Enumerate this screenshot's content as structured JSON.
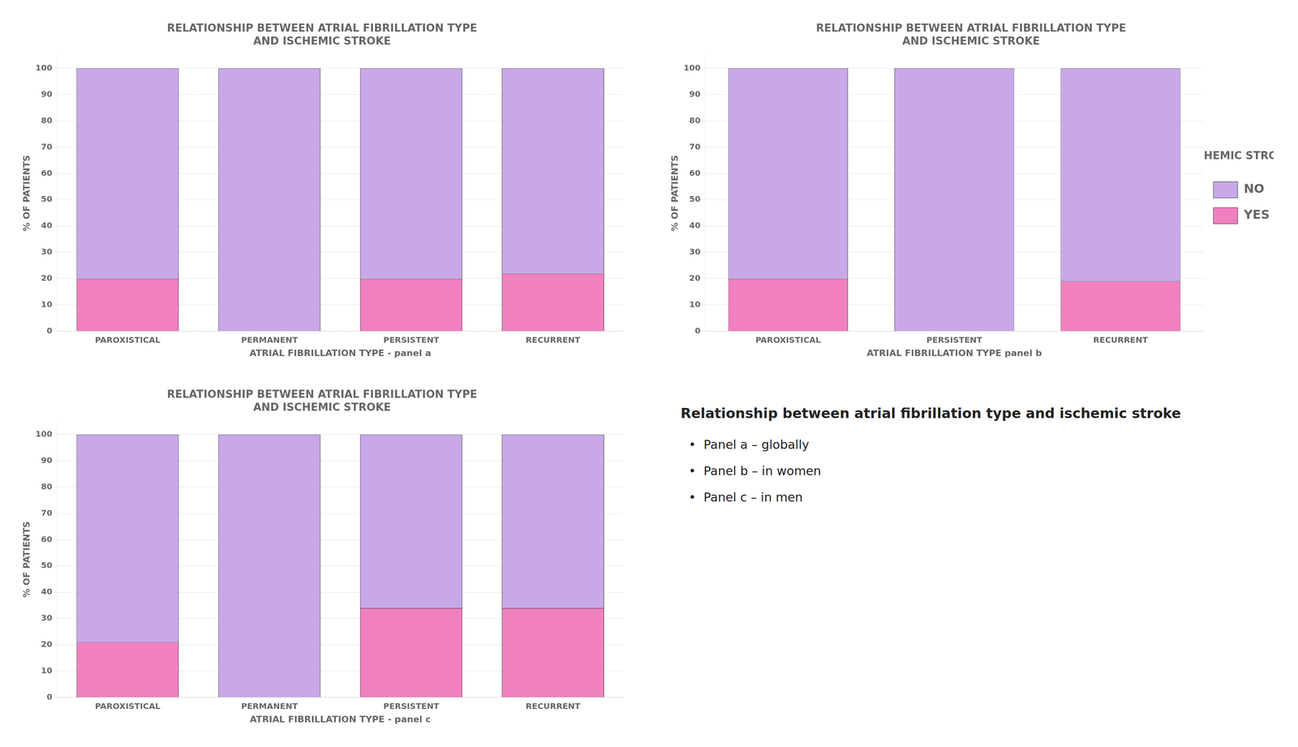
{
  "chart_data": [
    {
      "type": "bar",
      "stacked": true,
      "grid": true,
      "title": "RELATIONSHIP BETWEEN ATRIAL FIBRILLATION TYPE\nAND ISCHEMIC STROKE",
      "x_label": "ATRIAL FIBRILLATION TYPE - panel a",
      "y_label": "% OF PATIENTS",
      "categories": [
        "PAROXISTICAL",
        "PERMANENT",
        "PERSISTENT",
        "RECURRENT"
      ],
      "series": [
        {
          "color": "#F080C0",
          "values": [
            20,
            0,
            20,
            22
          ]
        },
        {
          "color": "#C8A8E8",
          "values": [
            80,
            100,
            80,
            78
          ]
        }
      ],
      "ylim": [
        0,
        105
      ],
      "yticks": [
        0,
        10,
        20,
        30,
        40,
        50,
        60,
        70,
        80,
        90,
        100
      ]
    },
    {
      "type": "bar",
      "stacked": true,
      "grid": true,
      "legend": "right",
      "legend_title": "ISCHEMIC STROKE",
      "title": "RELATIONSHIP BETWEEN ATRIAL FIBRILLATION TYPE\nAND ISCHEMIC STROKE",
      "x_label": "ATRIAL FIBRILLATION TYPE panel b",
      "y_label": "% OF PATIENTS",
      "categories": [
        "PAROXISTICAL",
        "PERSISTENT",
        "RECURRENT"
      ],
      "series": [
        {
          "name": "YES",
          "color": "#F080C0",
          "values": [
            20,
            0,
            19
          ]
        },
        {
          "name": "NO",
          "color": "#C8A8E8",
          "values": [
            80,
            100,
            81
          ]
        }
      ],
      "ylim": [
        0,
        105
      ],
      "yticks": [
        0,
        10,
        20,
        30,
        40,
        50,
        60,
        70,
        80,
        90,
        100
      ]
    },
    {
      "type": "bar",
      "stacked": true,
      "grid": true,
      "title": "RELATIONSHIP BETWEEN ATRIAL FIBRILLATION TYPE\nAND ISCHEMIC STROKE",
      "x_label": "ATRIAL FIBRILLATION TYPE - panel c",
      "y_label": "% OF PATIENTS",
      "categories": [
        "PAROXISTICAL",
        "PERMANENT",
        "PERSISTENT",
        "RECURRENT"
      ],
      "series": [
        {
          "color": "#F080C0",
          "values": [
            21,
            0,
            34,
            34
          ]
        },
        {
          "color": "#C8A8E8",
          "values": [
            79,
            100,
            66,
            66
          ]
        }
      ],
      "ylim": [
        0,
        105
      ],
      "yticks": [
        0,
        10,
        20,
        30,
        40,
        50,
        60,
        70,
        80,
        90,
        100
      ]
    }
  ],
  "annotations": [
    "Relationship between atrial fibrillation type and ischemic stroke",
    "•  Panel a – globally",
    "•  Panel b – in women",
    "•  Panel c – in men"
  ]
}
